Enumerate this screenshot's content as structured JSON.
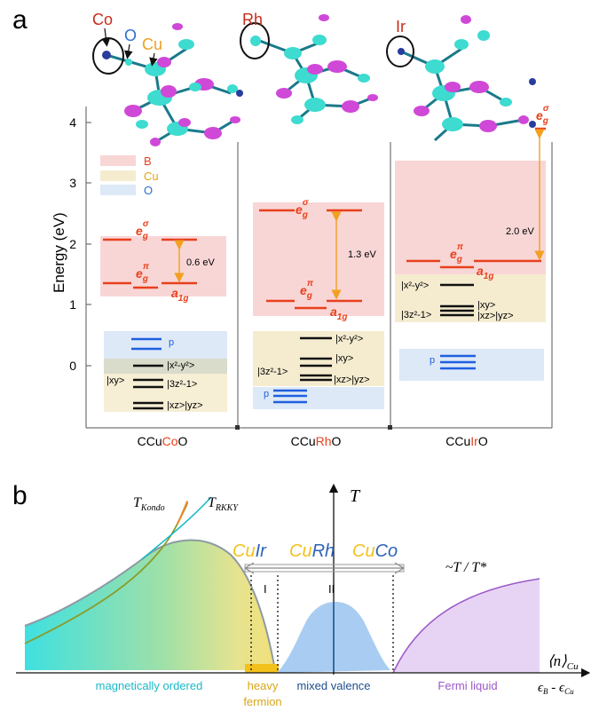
{
  "panel_a": {
    "label": "a",
    "y_axis_label": "Energy (eV)",
    "y_ticks": [
      "0",
      "1",
      "2",
      "3",
      "4"
    ],
    "molecules": {
      "co": {
        "atom_label": "Co",
        "o_label": "O",
        "cu_label": "Cu"
      },
      "rh": {
        "atom_label": "Rh"
      },
      "ir": {
        "atom_label": "Ir"
      }
    },
    "legend": {
      "b": "B",
      "cu": "Cu",
      "o": "O"
    },
    "colors": {
      "b_band": "#f9d6d6",
      "cu_band": "#f5ecd0",
      "o_band": "#dde9f7",
      "red_level": "#e8401c",
      "black_level": "#111111",
      "blue_level": "#1f5fe0",
      "arrow": "#f2a01f"
    },
    "col1": {
      "name_pre": "CCu",
      "name_hl": "Co",
      "name_post": "O",
      "eg_sigma": "e",
      "eg_sigma_sub": "g",
      "eg_sigma_sup": "σ",
      "eg_pi": "e",
      "eg_pi_sub": "g",
      "eg_pi_sup": "π",
      "a1g": "a",
      "a1g_sub": "1g",
      "gap": "0.6 eV",
      "p": "p",
      "x2y2": "|x²-y²>",
      "xy": "|xy>",
      "z2": "|3z²-1>",
      "xzyz": "|xz>|yz>"
    },
    "col2": {
      "name_pre": "CCu",
      "name_hl": "Rh",
      "name_post": "O",
      "eg_sigma": "e",
      "eg_sigma_sub": "g",
      "eg_sigma_sup": "σ",
      "eg_pi": "e",
      "eg_pi_sub": "g",
      "eg_pi_sup": "π",
      "a1g": "a",
      "a1g_sub": "1g",
      "gap": "1.3 eV",
      "p": "p",
      "x2y2": "|x²-y²>",
      "xy": "|xy>",
      "z2": "|3z²-1>",
      "xzyz": "|xz>|yz>"
    },
    "col3": {
      "name_pre": "CCu",
      "name_hl": "Ir",
      "name_post": "O",
      "eg_sigma": "e",
      "eg_sigma_sub": "g",
      "eg_sigma_sup": "σ",
      "eg_pi": "e",
      "eg_pi_sub": "g",
      "eg_pi_sup": "π",
      "a1g": "a",
      "a1g_sub": "1g",
      "gap": "2.0 eV",
      "p": "p",
      "x2y2": "|x²-y²>",
      "xy": "|xy>",
      "z2": "|3z²-1>",
      "xzyz": "|xz>|yz>"
    }
  },
  "panel_b": {
    "label": "b",
    "t_axis": "T",
    "t_kondo": "T",
    "t_kondo_sub": "Kondo",
    "t_rkky": "T",
    "t_rkky_sub": "RKKY",
    "compounds": {
      "cu1": "Cu",
      "ir": "Ir",
      "cu2": "Cu",
      "rh": "Rh",
      "cu3": "Cu",
      "co": "Co"
    },
    "marker_i": "I",
    "marker_ii": "II",
    "fermi_scaling": "~T / T*",
    "x_axis_top": "⟨n⟩",
    "x_axis_top_sub": "Cu",
    "x_axis_bottom": "ϵ",
    "x_axis_bottom_sub": "B",
    "x_axis_bottom_mid": " - ϵ",
    "x_axis_bottom_sub2": "Cu",
    "regions": {
      "magnetic": "magnetically ordered",
      "heavy1": "heavy",
      "heavy2": "fermion",
      "mixed": "mixed valence",
      "fermi": "Fermi liquid"
    },
    "colors": {
      "cu_yellow": "#f2c11b",
      "metal_blue": "#2e63b8",
      "magnetic_text": "#17b9c8",
      "heavy_text": "#d9a51a",
      "mixed_text": "#1d4e8c",
      "fermi_text": "#9b59c7",
      "fermi_fill": "#e7d4f5",
      "mixed_fill": "#a9cdf2"
    }
  }
}
